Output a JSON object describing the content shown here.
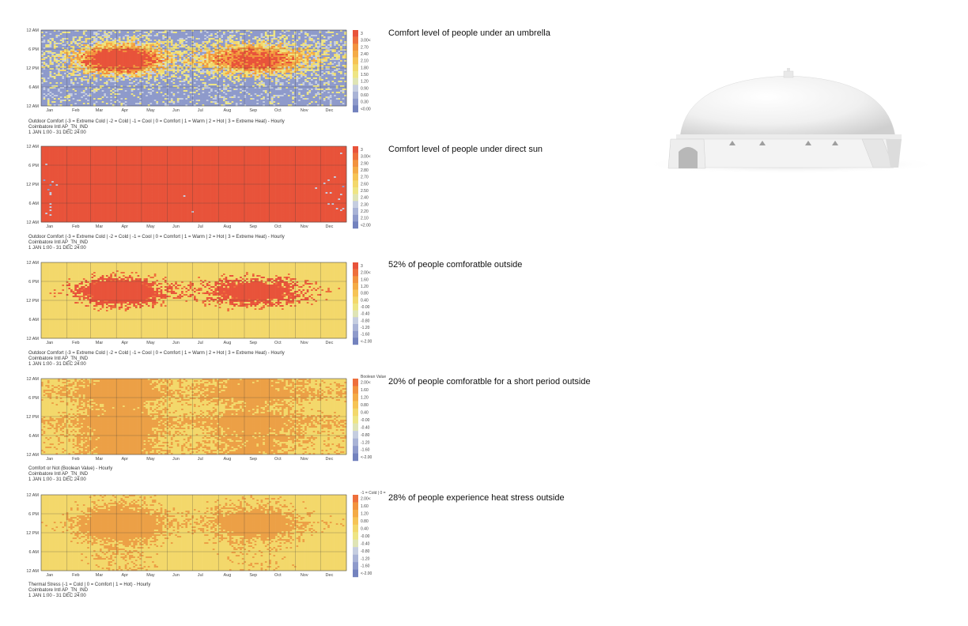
{
  "chart_data": [
    {
      "type": "heatmap",
      "id": "umbrella",
      "caption": "Comfort level of people under an umbrella",
      "subtitle_lines": [
        "Outdoor Comfort (-3 = Extreme Cold | -2 = Cold | -1 = Cool | 0 = Comfort | 1 = Warm | 2 = Hot | 3 = Extreme Heat) - Hourly",
        "Coimbatore Intl AP_TN_IND",
        "1 JAN 1:00 - 31 DEC 24:00"
      ],
      "x_tick_labels": [
        "Jan",
        "Feb",
        "Mar",
        "Apr",
        "May",
        "Jun",
        "Jul",
        "Aug",
        "Sep",
        "Oct",
        "Nov",
        "Dec"
      ],
      "y_tick_labels": [
        "12 AM",
        "6 PM",
        "12 PM",
        "6 AM",
        "12 AM"
      ],
      "legend_labels": [
        "3",
        "3.00<",
        "2.70",
        "2.40",
        "2.10",
        "1.80",
        "1.50",
        "1.20",
        "0.90",
        "0.60",
        "0.30",
        "<0.00"
      ],
      "legend_colors": [
        "#e8533a",
        "#ee6f3c",
        "#f2923e",
        "#f4ab46",
        "#f6c455",
        "#f3d86b",
        "#eee584",
        "#dfe4b5",
        "#c5cde0",
        "#a9b3d6",
        "#8e9acb",
        "#7382be"
      ],
      "pattern": "umbrella"
    },
    {
      "type": "heatmap",
      "id": "sun",
      "caption": "Comfort level of people under direct sun",
      "subtitle_lines": [
        "Outdoor Comfort (-3 = Extreme Cold | -2 = Cold | -1 = Cool | 0 = Comfort | 1 = Warm | 2 = Hot | 3 = Extreme Heat) - Hourly",
        "Coimbatore Intl AP_TN_IND",
        "1 JAN 1:00 - 31 DEC 24:00"
      ],
      "x_tick_labels": [
        "Jan",
        "Feb",
        "Mar",
        "Apr",
        "May",
        "Jun",
        "Jul",
        "Aug",
        "Sep",
        "Oct",
        "Nov",
        "Dec"
      ],
      "y_tick_labels": [
        "12 AM",
        "6 PM",
        "12 PM",
        "6 AM",
        "12 AM"
      ],
      "legend_labels": [
        "3",
        "3.00<",
        "2.90",
        "2.80",
        "2.70",
        "2.60",
        "2.50",
        "2.40",
        "2.30",
        "2.20",
        "2.10",
        "<2.00"
      ],
      "legend_colors": [
        "#e8533a",
        "#ee6f3c",
        "#f2923e",
        "#f4ab46",
        "#f6c455",
        "#f3d86b",
        "#eee584",
        "#dfe4b5",
        "#c5cde0",
        "#a9b3d6",
        "#8e9acb",
        "#7382be"
      ],
      "pattern": "sun"
    },
    {
      "type": "heatmap",
      "id": "comfortable",
      "caption": "52% of people comforatble outside",
      "subtitle_lines": [
        "Outdoor Comfort (-3 = Extreme Cold | -2 = Cold | -1 = Cool | 0 = Comfort | 1 = Warm | 2 = Hot | 3 = Extreme Heat) - Hourly",
        "Coimbatore Intl AP_TN_IND",
        "1 JAN 1:00 - 31 DEC 24:00"
      ],
      "x_tick_labels": [
        "Jan",
        "Feb",
        "Mar",
        "Apr",
        "May",
        "Jun",
        "Jul",
        "Aug",
        "Sep",
        "Oct",
        "Nov",
        "Dec"
      ],
      "y_tick_labels": [
        "12 AM",
        "6 PM",
        "12 PM",
        "6 AM",
        "12 AM"
      ],
      "legend_labels": [
        "3",
        "2.00<",
        "1.60",
        "1.20",
        "0.80",
        "0.40",
        "-0.00",
        "-0.40",
        "-0.80",
        "-1.20",
        "-1.60",
        "<-2.00"
      ],
      "legend_colors": [
        "#e8533a",
        "#ee6f3c",
        "#f2923e",
        "#f4ab46",
        "#f6c455",
        "#f3d86b",
        "#eee584",
        "#dfe4b5",
        "#c5cde0",
        "#a9b3d6",
        "#8e9acb",
        "#7382be"
      ],
      "pattern": "comfort"
    },
    {
      "type": "heatmap",
      "id": "short-period",
      "caption": "20% of people comforatble for a short period outside",
      "subtitle_lines": [
        "Comfort or Not (Boolean Value) - Hourly",
        "Coimbatore Intl AP_TN_IND",
        "1 JAN 1:00 - 31 DEC 24:00"
      ],
      "legend_title": "Boolean Value",
      "x_tick_labels": [
        "Jan",
        "Feb",
        "Mar",
        "Apr",
        "May",
        "Jun",
        "Jul",
        "Aug",
        "Sep",
        "Oct",
        "Nov",
        "Dec"
      ],
      "y_tick_labels": [
        "12 AM",
        "6 PM",
        "12 PM",
        "6 AM",
        "12 AM"
      ],
      "legend_labels": [
        "2.00<",
        "1.60",
        "1.20",
        "0.80",
        "0.40",
        "-0.00",
        "-0.40",
        "-0.80",
        "-1.20",
        "-1.60",
        "<-2.00"
      ],
      "legend_colors": [
        "#ee6f3c",
        "#f2923e",
        "#f4ab46",
        "#f6c455",
        "#f3d86b",
        "#eee584",
        "#dfe4b5",
        "#c5cde0",
        "#a9b3d6",
        "#8e9acb",
        "#7382be"
      ],
      "pattern": "boolean"
    },
    {
      "type": "heatmap",
      "id": "heat-stress",
      "caption": "28% of people experience heat stress outside",
      "subtitle_lines": [
        "Thermal Stress (-1 = Cold | 0 = Comfort | 1 = Hot) - Hourly",
        "Coimbatore Intl AP_TN_IND",
        "1 JAN 1:00 - 31 DEC 24:00"
      ],
      "legend_title": "-1 = Cold | 0 =",
      "x_tick_labels": [
        "Jan",
        "Feb",
        "Mar",
        "Apr",
        "May",
        "Jun",
        "Jul",
        "Aug",
        "Sep",
        "Oct",
        "Nov",
        "Dec"
      ],
      "y_tick_labels": [
        "12 AM",
        "6 PM",
        "12 PM",
        "6 AM",
        "12 AM"
      ],
      "legend_labels": [
        "2.00<",
        "1.60",
        "1.20",
        "0.80",
        "0.40",
        "-0.00",
        "-0.40",
        "-0.80",
        "-1.20",
        "-1.60",
        "<-2.00"
      ],
      "legend_colors": [
        "#ee6f3c",
        "#f2923e",
        "#f4ab46",
        "#f6c455",
        "#f3d86b",
        "#eee584",
        "#dfe4b5",
        "#c5cde0",
        "#a9b3d6",
        "#8e9acb",
        "#7382be"
      ],
      "pattern": "stress"
    }
  ]
}
